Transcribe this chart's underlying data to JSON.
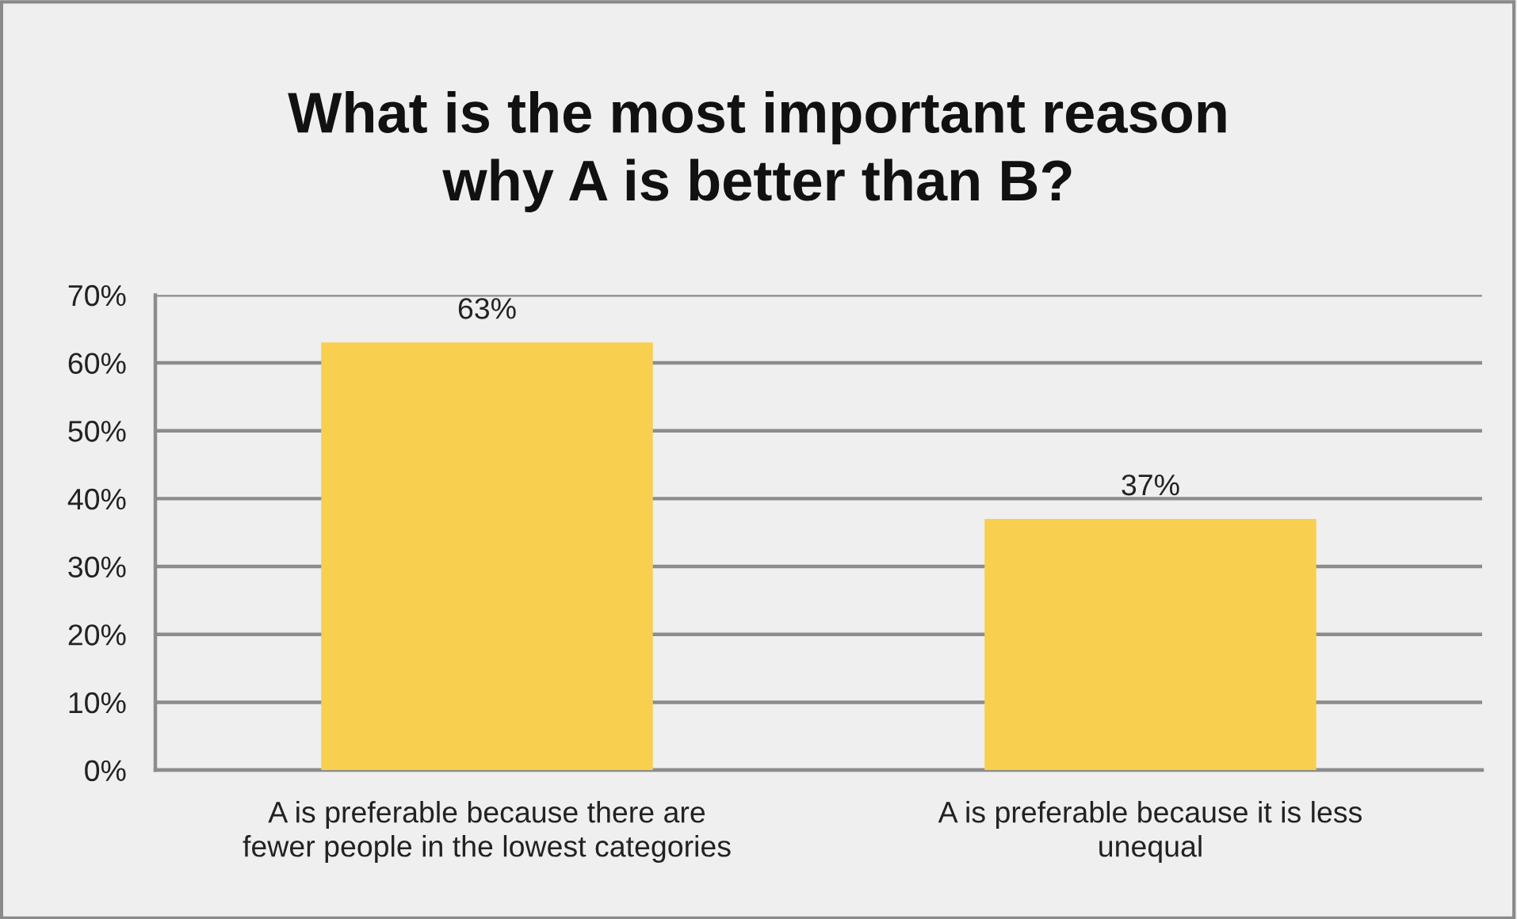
{
  "chart_data": {
    "type": "bar",
    "title": "What is the most important reason\nwhy A is better than B?",
    "categories": [
      "A is preferable because there are\nfewer people in the lowest categories",
      "A is preferable because it is less\nunequal"
    ],
    "values": [
      63,
      37
    ],
    "color": "#f9cf4f",
    "value_labels": [
      "63%",
      "37%"
    ],
    "ylim": [
      0,
      70
    ],
    "yticks": [
      {
        "value": 0,
        "label": "0%"
      },
      {
        "value": 10,
        "label": "10%"
      },
      {
        "value": 20,
        "label": "20%"
      },
      {
        "value": 30,
        "label": "30%"
      },
      {
        "value": 40,
        "label": "40%"
      },
      {
        "value": 50,
        "label": "50%"
      },
      {
        "value": 60,
        "label": "60%"
      },
      {
        "value": 70,
        "label": "70%"
      }
    ],
    "grid": "y",
    "legend": false
  }
}
